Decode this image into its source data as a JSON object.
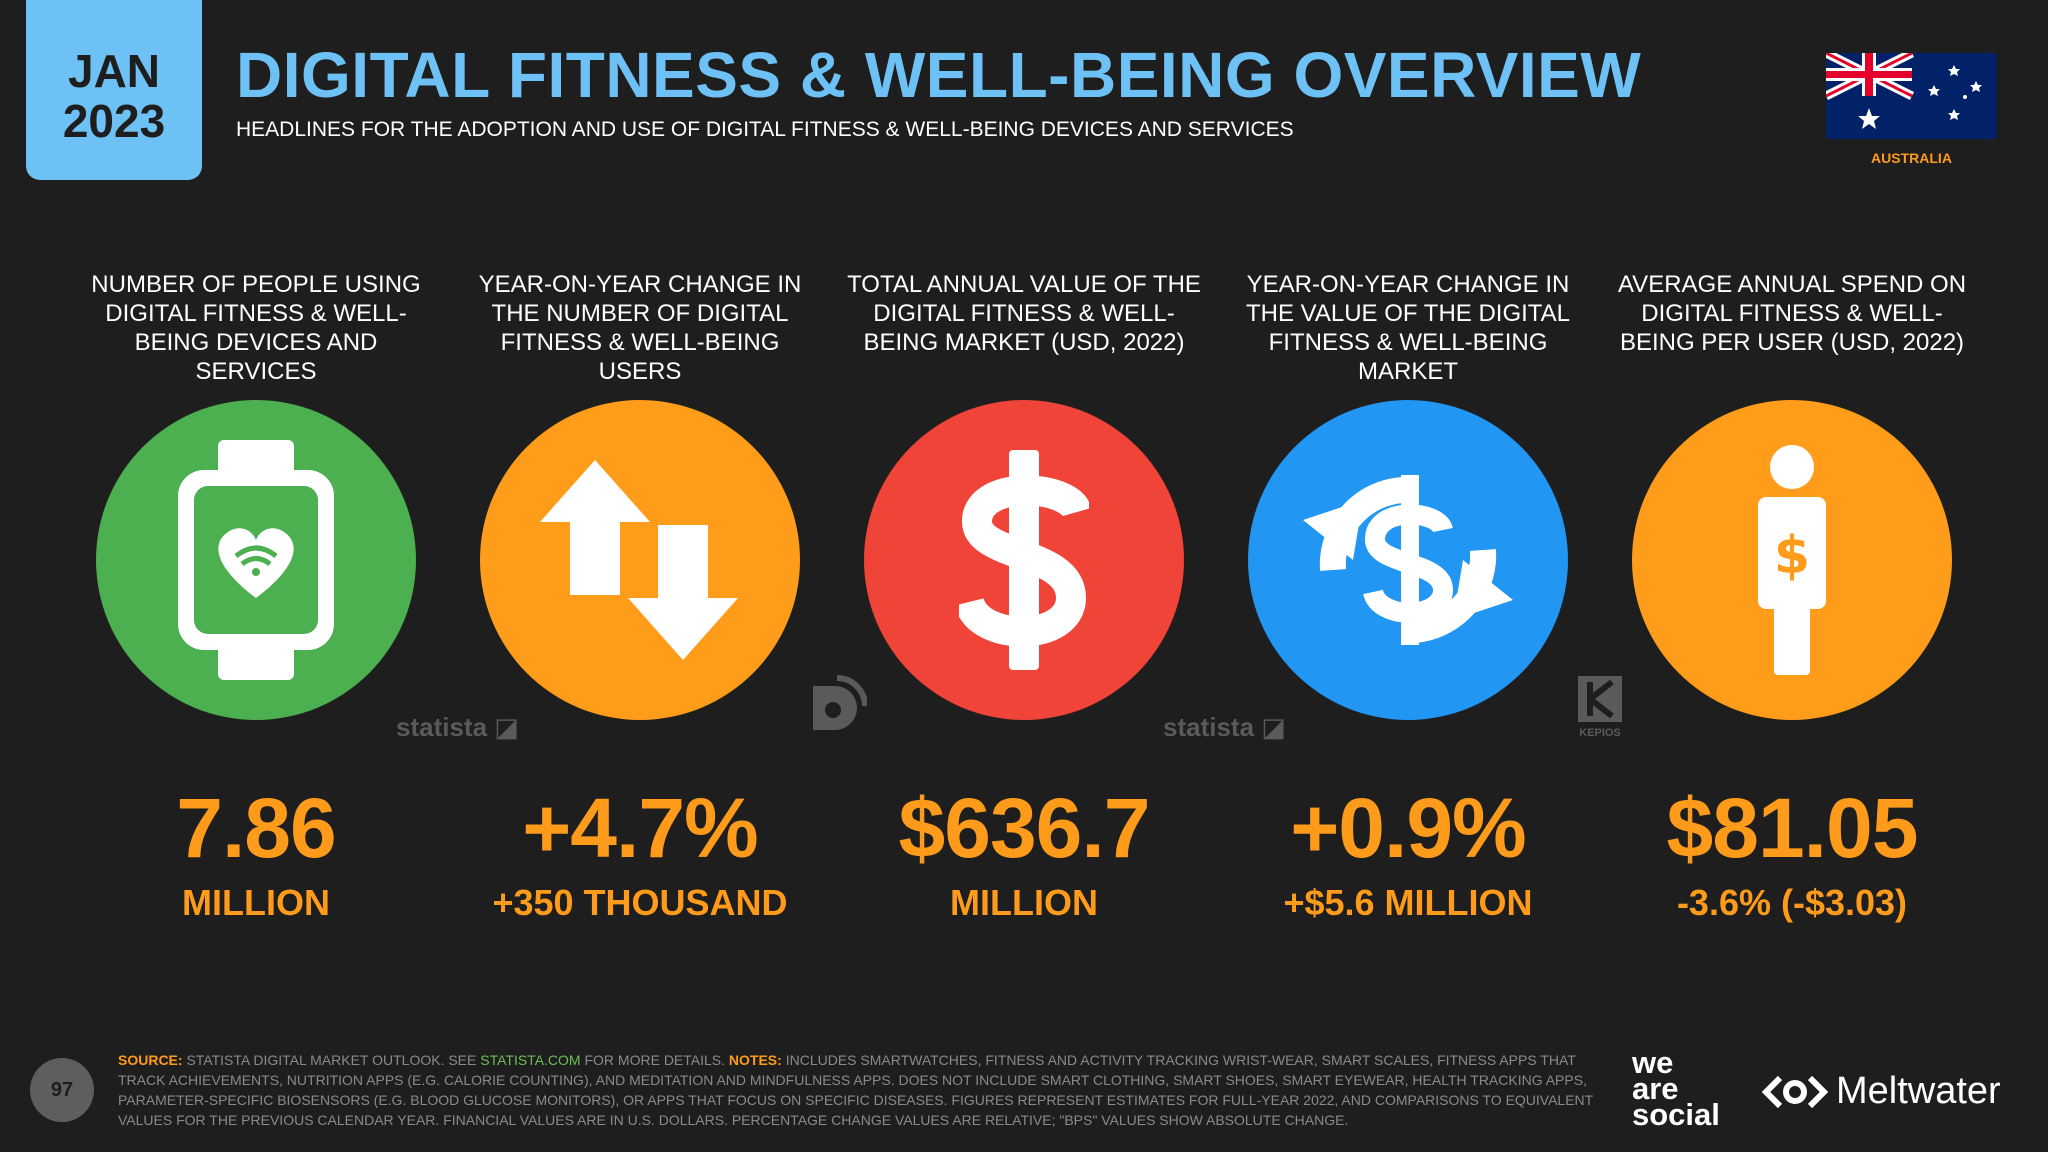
{
  "header": {
    "month": "JAN",
    "year": "2023",
    "title": "DIGITAL FITNESS & WELL-BEING OVERVIEW",
    "subtitle": "HEADLINES FOR THE ADOPTION AND USE OF DIGITAL FITNESS & WELL-BEING DEVICES AND SERVICES",
    "country": "AUSTRALIA"
  },
  "colors": {
    "accent_blue": "#6ec1f4",
    "value_orange": "#ff9b1b",
    "green": "#4caf50",
    "orange": "#ff9c1a",
    "red": "#f04438",
    "blue": "#2196f3",
    "background": "#1e1e1e"
  },
  "stats": [
    {
      "label": "NUMBER OF PEOPLE USING DIGITAL FITNESS & WELL-BEING DEVICES AND SERVICES",
      "value": "7.86",
      "sub": "MILLION",
      "icon": "smartwatch-heart-icon"
    },
    {
      "label": "YEAR-ON-YEAR CHANGE IN THE NUMBER OF DIGITAL FITNESS & WELL-BEING USERS",
      "value": "+4.7%",
      "sub": "+350 THOUSAND",
      "icon": "up-down-arrows-icon"
    },
    {
      "label": "TOTAL ANNUAL VALUE OF THE DIGITAL FITNESS & WELL-BEING MARKET (USD, 2022)",
      "value": "$636.7",
      "sub": "MILLION",
      "icon": "dollar-sign-icon"
    },
    {
      "label": "YEAR-ON-YEAR CHANGE IN THE VALUE OF THE DIGITAL FITNESS & WELL-BEING MARKET",
      "value": "+0.9%",
      "sub": "+$5.6 MILLION",
      "icon": "dollar-cycle-icon"
    },
    {
      "label": "AVERAGE ANNUAL SPEND ON DIGITAL FITNESS & WELL-BEING PER USER (USD, 2022)",
      "value": "$81.05",
      "sub": "-3.6% (-$3.03)",
      "icon": "person-dollar-icon"
    }
  ],
  "watermarks": {
    "statista": "statista",
    "kepios": "KEPIOS"
  },
  "footer": {
    "page": "97",
    "source_label": "SOURCE:",
    "source_text": "STATISTA DIGITAL MARKET OUTLOOK. SEE",
    "source_link": "STATISTA.COM",
    "source_after": "FOR MORE DETAILS.",
    "notes_label": "NOTES:",
    "notes_text": "INCLUDES SMARTWATCHES, FITNESS AND ACTIVITY TRACKING WRIST-WEAR, SMART SCALES, FITNESS APPS THAT TRACK ACHIEVEMENTS, NUTRITION APPS (E.G. CALORIE COUNTING), AND MEDITATION AND MINDFULNESS APPS. DOES NOT INCLUDE SMART CLOTHING, SMART SHOES, SMART EYEWEAR, HEALTH TRACKING APPS, PARAMETER-SPECIFIC BIOSENSORS (E.G. BLOOD GLUCOSE MONITORS), OR APPS THAT FOCUS ON SPECIFIC DISEASES. FIGURES REPRESENT ESTIMATES FOR FULL-YEAR 2022, AND COMPARISONS TO EQUIVALENT VALUES FOR THE PREVIOUS CALENDAR YEAR. FINANCIAL VALUES ARE IN U.S. DOLLARS. PERCENTAGE CHANGE VALUES ARE RELATIVE; \"BPS\" VALUES SHOW ABSOLUTE CHANGE.",
    "brand_we": "we",
    "brand_are": "are",
    "brand_social": "social",
    "brand_meltwater": "Meltwater"
  }
}
